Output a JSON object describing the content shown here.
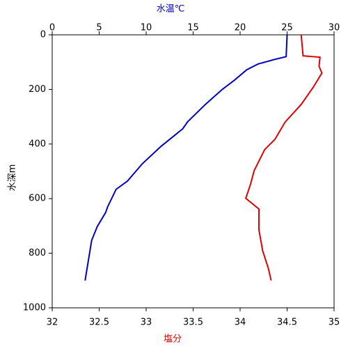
{
  "chart_data": {
    "type": "line",
    "x_label": "塩分",
    "x2_label": "水温℃",
    "y_label": "水深m",
    "xlim": [
      32,
      35
    ],
    "xticks": [
      32,
      32.5,
      33,
      33.5,
      34,
      34.5,
      35
    ],
    "x2lim": [
      0,
      30
    ],
    "x2ticks": [
      0,
      5,
      10,
      15,
      20,
      25,
      30
    ],
    "ylim": [
      1000,
      0
    ],
    "yticks": [
      0,
      200,
      400,
      600,
      800,
      1000
    ],
    "series": [
      {
        "color": "#0000c0",
        "axis": "x2",
        "values": [
          25,
          24.9,
          23.7,
          21.9,
          20.7,
          19.4,
          18.1,
          16.3,
          14.4,
          13.9,
          11.6,
          9.6,
          8.0,
          6.8,
          5.9,
          5.7,
          4.8,
          4.2,
          3.9,
          3.5
        ],
        "depth": [
          0,
          80,
          90,
          107,
          128,
          166,
          200,
          255,
          319,
          344,
          408,
          472,
          536,
          566,
          630,
          650,
          702,
          753,
          816,
          900
        ]
      },
      {
        "color": "#e00000",
        "axis": "x",
        "values": [
          34.65,
          34.67,
          34.85,
          34.84,
          34.87,
          34.78,
          34.65,
          34.48,
          34.37,
          34.26,
          34.15,
          34.11,
          34.06,
          34.2,
          34.2,
          34.24,
          34.3,
          34.33
        ],
        "depth": [
          0,
          77,
          82,
          115,
          140,
          191,
          255,
          319,
          383,
          421,
          497,
          548,
          599,
          638,
          714,
          791,
          855,
          900
        ]
      }
    ]
  }
}
